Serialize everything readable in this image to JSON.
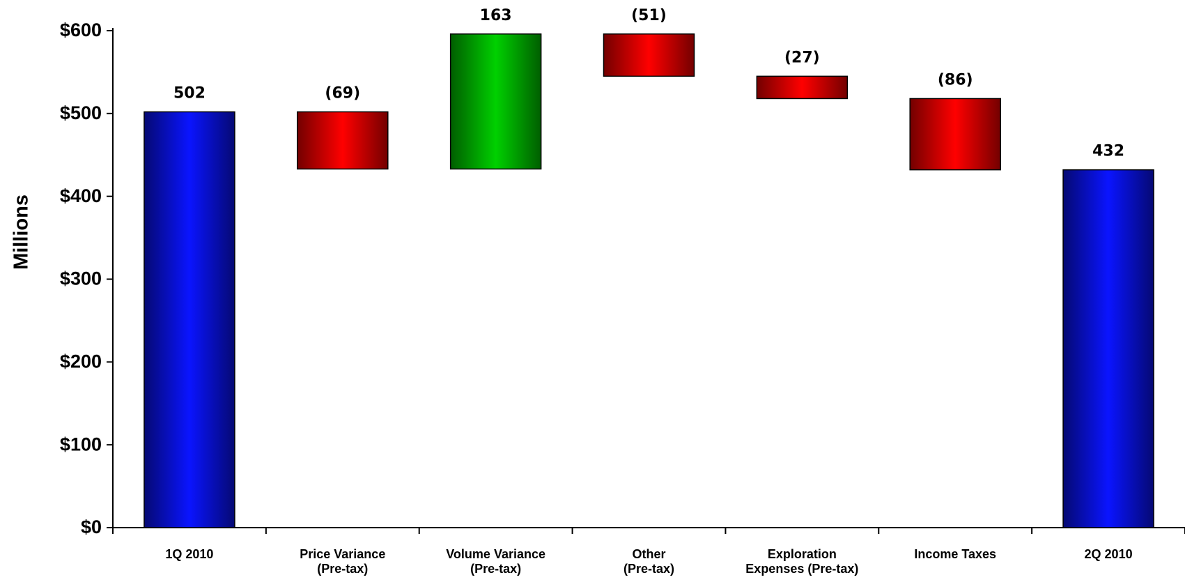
{
  "chart_data": {
    "type": "waterfall",
    "y_label": "Millions",
    "categories": [
      "1Q 2010",
      "Price Variance\n(Pre-tax)",
      "Volume Variance\n(Pre-tax)",
      "Other\n(Pre-tax)",
      "Exploration\nExpenses (Pre-tax)",
      "Income Taxes",
      "2Q 2010"
    ],
    "values": [
      502,
      -69,
      163,
      -51,
      -27,
      -86,
      432
    ],
    "value_labels": [
      "502",
      "(69)",
      "163",
      "(51)",
      "(27)",
      "(86)",
      "432"
    ],
    "colors": {
      "total": "#0a14ff",
      "increase": "#00d000",
      "decrease": "#ff0000"
    },
    "ylim": [
      0,
      600
    ],
    "yticks": [
      {
        "value": 0,
        "label": "$0"
      },
      {
        "value": 100,
        "label": "$100"
      },
      {
        "value": 200,
        "label": "$200"
      },
      {
        "value": 300,
        "label": "$300"
      },
      {
        "value": 400,
        "label": "$400"
      },
      {
        "value": 500,
        "label": "$500"
      },
      {
        "value": 600,
        "label": "$600"
      }
    ]
  }
}
